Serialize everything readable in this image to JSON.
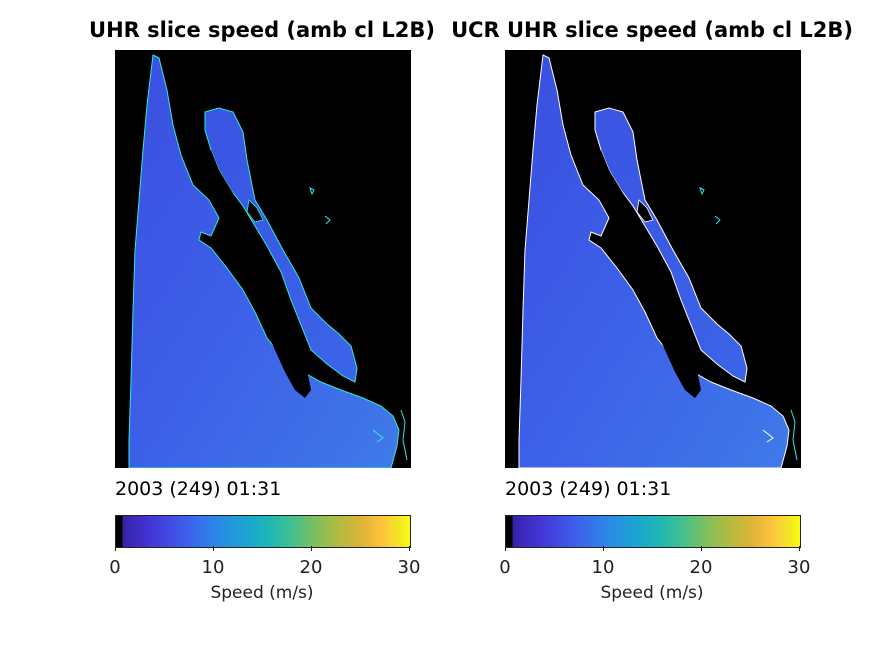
{
  "chart_data": [
    {
      "type": "heatmap",
      "title": "UHR slice speed (amb cl L2B)",
      "timestamp": "2003 (249) 01:31",
      "colorbar": {
        "label": "Speed (m/s)",
        "range": [
          0,
          30
        ],
        "ticks": [
          "0",
          "10",
          "20",
          "30"
        ],
        "colormap": "parula"
      },
      "speed_range_over_ocean": [
        3,
        9
      ],
      "land_mask_color": "#000000",
      "coastline_color": "#00ffff"
    },
    {
      "type": "heatmap",
      "title": "UCR UHR slice speed (amb cl L2B)",
      "timestamp": "2003 (249) 01:31",
      "colorbar": {
        "label": "Speed (m/s)",
        "range": [
          0,
          30
        ],
        "ticks": [
          "0",
          "10",
          "20",
          "30"
        ],
        "colormap": "parula"
      },
      "speed_range_over_ocean": [
        3,
        9
      ],
      "land_mask_color": "#000000",
      "coastline_color": "#ffffff"
    }
  ]
}
